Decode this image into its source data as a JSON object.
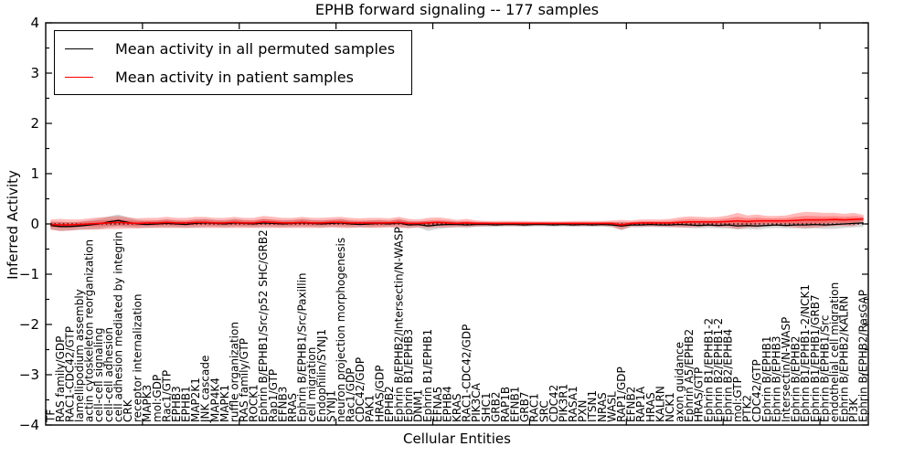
{
  "chart_data": {
    "type": "line",
    "title": "EPHB forward signaling -- 177 samples",
    "xlabel": "Cellular Entities",
    "ylabel": "Inferred Activity",
    "ylim": [
      -4,
      4
    ],
    "yticks": [
      4,
      3,
      2,
      1,
      0,
      -1,
      -2,
      -3,
      -4
    ],
    "y_minor_step": 0.5,
    "x_major_ticks": [
      10,
      20,
      30,
      40,
      50,
      60,
      70,
      80
    ],
    "grid": false,
    "legend_position": "upper left",
    "zero_line": {
      "style": "dotted",
      "color": "#000000"
    },
    "categories": [
      "TF",
      "RAS family/GDP",
      "RAC1-CDC42/GTP",
      "lamellipodium assembly",
      "actin cytoskeleton reorganization",
      "cell-cell signaling",
      "cell-cell adhesion",
      "cell adhesion mediated by integrin",
      "CRK",
      "receptor internalization",
      "MAPK3",
      "mol:GDP",
      "Rac1/GTP",
      "EPHB3",
      "EPHB1",
      "MAP2K1",
      "JNK cascade",
      "MAP4K4",
      "MAPK1",
      "ruffle organization",
      "RAS family/GTP",
      "ROCK1",
      "Ephrin B/EPHB1/Src/p52 SHC/GRB2",
      "Rap1/GTP",
      "EFNB3",
      "RRAS",
      "Ephrin B/EPHB1/Src/Paxillin",
      "cell migration",
      "Endophilin/SYNJ1",
      "SYNJ1",
      "neuron projection morphogenesis",
      "Rac1/GDP",
      "CDC42/GDP",
      "PAK1",
      "HRAS/GDP",
      "EPHB2",
      "Ephrin B/EPHB2/Intersectin/N-WASP",
      "Ephrin B1/EPHB3",
      "DNM1",
      "Ephrin B1/EPHB1",
      "EFNA5",
      "EPHB4",
      "KRAS",
      "RAC1-CDC42/GDP",
      "PIK3CA",
      "SHC1",
      "GRB2",
      "RAP1B",
      "EFNB1",
      "GRB7",
      "RAC1",
      "SRC",
      "CDC42",
      "PIK3R1",
      "RASA1",
      "PXN",
      "ITSN1",
      "NRAS",
      "WASL",
      "RAP1/GDP",
      "EFNB2",
      "RAP1A",
      "HRAS",
      "KALRN",
      "NCK1",
      "axon guidance",
      "Ephrin A5/EPHB2",
      "HRAS/GTP",
      "Ephrin B1/EPHB1-2",
      "Ephrin B2/EPHB1-2",
      "Ephrin B2/EPHB4",
      "mol:GTP",
      "PTK2",
      "CDC42/GTP",
      "Ephrin B/EPHB1",
      "Ephrin B/EPHB3",
      "Intersectin/N-WASP",
      "Ephrin B/EPHB2",
      "Ephrin B1/EPHB1-2/NCK1",
      "Ephrin B1/EPHB1/GRB7",
      "Ephrin B/EPHB1/Src",
      "endothelial cell migration",
      "Ephrin B/EPHB2/KALRN",
      "PI3K",
      "Ephrin B/EPHB2/RasGAP"
    ],
    "series": [
      {
        "name": "Mean activity in all permuted samples",
        "color": "#000000",
        "band_color": "rgba(0,0,0,0.16)",
        "values": [
          -0.03,
          -0.05,
          -0.05,
          -0.04,
          -0.02,
          0.0,
          0.04,
          0.07,
          0.03,
          0.0,
          -0.01,
          0.0,
          0.01,
          0.0,
          -0.01,
          0.01,
          0.02,
          0.01,
          0.0,
          0.02,
          0.01,
          0.0,
          0.02,
          0.01,
          0.0,
          0.01,
          0.02,
          0.01,
          0.0,
          0.01,
          0.02,
          0.0,
          -0.01,
          0.0,
          0.01,
          0.0,
          0.02,
          -0.02,
          -0.01,
          -0.04,
          -0.02,
          -0.01,
          -0.01,
          -0.02,
          -0.01,
          -0.01,
          -0.02,
          -0.01,
          -0.01,
          -0.02,
          -0.01,
          -0.01,
          -0.02,
          -0.01,
          -0.02,
          -0.01,
          -0.02,
          -0.01,
          -0.02,
          -0.04,
          -0.02,
          -0.02,
          -0.01,
          -0.02,
          -0.02,
          -0.01,
          -0.02,
          -0.03,
          -0.02,
          -0.03,
          -0.02,
          -0.04,
          -0.03,
          -0.04,
          -0.03,
          -0.02,
          -0.03,
          -0.02,
          -0.02,
          -0.01,
          -0.02,
          -0.01,
          0.0,
          0.01,
          0.02
        ],
        "band_halfwidth": [
          0.08,
          0.09,
          0.08,
          0.08,
          0.09,
          0.1,
          0.11,
          0.12,
          0.1,
          0.08,
          0.07,
          0.07,
          0.08,
          0.07,
          0.07,
          0.08,
          0.08,
          0.07,
          0.07,
          0.08,
          0.07,
          0.07,
          0.08,
          0.07,
          0.07,
          0.07,
          0.08,
          0.07,
          0.07,
          0.07,
          0.08,
          0.07,
          0.06,
          0.07,
          0.07,
          0.06,
          0.08,
          0.07,
          0.06,
          0.1,
          0.08,
          0.07,
          0.06,
          0.06,
          0.05,
          0.05,
          0.04,
          0.04,
          0.04,
          0.04,
          0.04,
          0.04,
          0.04,
          0.04,
          0.04,
          0.04,
          0.04,
          0.04,
          0.05,
          0.08,
          0.05,
          0.05,
          0.05,
          0.05,
          0.05,
          0.06,
          0.06,
          0.06,
          0.06,
          0.06,
          0.07,
          0.07,
          0.07,
          0.07,
          0.06,
          0.06,
          0.06,
          0.07,
          0.08,
          0.08,
          0.08,
          0.09,
          0.08,
          0.08,
          0.08
        ]
      },
      {
        "name": "Mean activity in patient samples",
        "color": "#ff0000",
        "band_color": "rgba(255,0,0,0.27)",
        "inner_band_factor": 0.5,
        "values": [
          -0.01,
          -0.02,
          -0.02,
          -0.01,
          0.0,
          0.01,
          0.02,
          0.03,
          0.02,
          0.01,
          0.02,
          0.02,
          0.03,
          0.02,
          0.02,
          0.03,
          0.03,
          0.02,
          0.02,
          0.03,
          0.02,
          0.02,
          0.04,
          0.03,
          0.02,
          0.02,
          0.03,
          0.02,
          0.02,
          0.03,
          0.03,
          0.02,
          0.02,
          0.02,
          0.02,
          0.02,
          0.03,
          0.01,
          0.01,
          0.02,
          0.03,
          0.02,
          0.01,
          0.02,
          0.01,
          0.01,
          0.01,
          0.01,
          0.01,
          0.01,
          0.01,
          0.01,
          0.01,
          0.01,
          0.01,
          0.01,
          0.01,
          0.01,
          0.01,
          -0.02,
          0.01,
          0.02,
          0.02,
          0.02,
          0.02,
          0.03,
          0.04,
          0.04,
          0.04,
          0.04,
          0.05,
          0.06,
          0.05,
          0.06,
          0.06,
          0.06,
          0.06,
          0.07,
          0.08,
          0.08,
          0.08,
          0.09,
          0.08,
          0.09,
          0.1
        ],
        "band_halfwidth": [
          0.1,
          0.12,
          0.11,
          0.1,
          0.11,
          0.12,
          0.12,
          0.13,
          0.11,
          0.1,
          0.1,
          0.1,
          0.11,
          0.1,
          0.1,
          0.11,
          0.11,
          0.1,
          0.1,
          0.11,
          0.1,
          0.1,
          0.12,
          0.11,
          0.1,
          0.1,
          0.11,
          0.1,
          0.1,
          0.1,
          0.11,
          0.1,
          0.09,
          0.1,
          0.1,
          0.09,
          0.11,
          0.09,
          0.08,
          0.1,
          0.1,
          0.09,
          0.07,
          0.08,
          0.06,
          0.05,
          0.05,
          0.05,
          0.05,
          0.05,
          0.04,
          0.04,
          0.04,
          0.04,
          0.05,
          0.05,
          0.05,
          0.05,
          0.06,
          0.1,
          0.06,
          0.07,
          0.07,
          0.07,
          0.08,
          0.1,
          0.11,
          0.1,
          0.09,
          0.1,
          0.12,
          0.16,
          0.12,
          0.13,
          0.1,
          0.1,
          0.11,
          0.14,
          0.16,
          0.15,
          0.14,
          0.13,
          0.12,
          0.13,
          0.08
        ]
      }
    ]
  }
}
